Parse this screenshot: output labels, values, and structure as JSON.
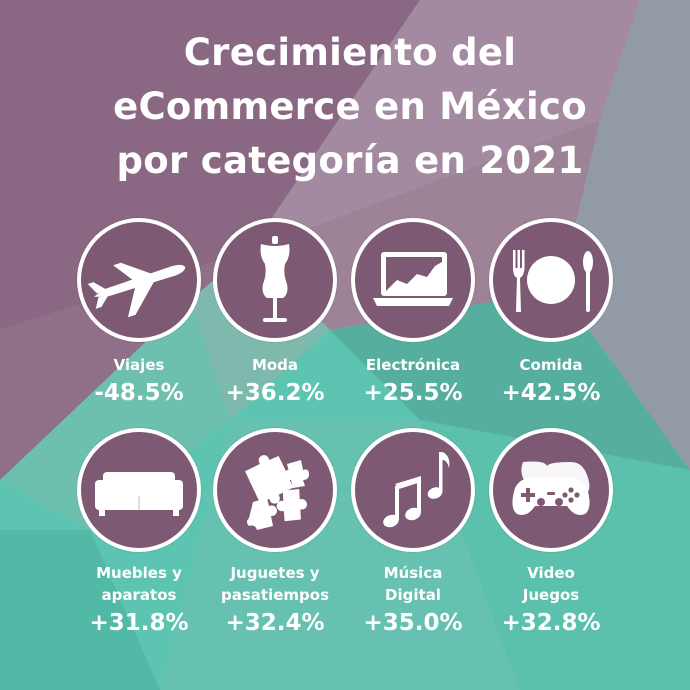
{
  "title_lines": [
    "Crecimiento del",
    "eCommerce en México",
    "por categoría en 2021"
  ],
  "colors": {
    "circle": "#7d5974",
    "teal": "#5cc4b0",
    "purple": "#8c6a84",
    "text": "#ffffff"
  },
  "categories": [
    {
      "label": "Viajes",
      "value": "-48.5%",
      "icon": "airplane-icon"
    },
    {
      "label": "Moda",
      "value": "+36.2%",
      "icon": "mannequin-icon"
    },
    {
      "label": "Electrónica",
      "value": "+25.5%",
      "icon": "laptop-icon"
    },
    {
      "label": "Comida",
      "value": "+42.5%",
      "icon": "plate-cutlery-icon"
    },
    {
      "label": "Muebles y aparatos",
      "label_lines": [
        "Muebles y",
        "aparatos"
      ],
      "value": "+31.8%",
      "icon": "sofa-icon"
    },
    {
      "label": "Juguetes y pasatiempos",
      "label_lines": [
        "Juguetes y",
        "pasatiempos"
      ],
      "value": "+32.4%",
      "icon": "puzzle-icon"
    },
    {
      "label": "Música Digital",
      "label_lines": [
        "Música",
        "Digital"
      ],
      "value": "+35.0%",
      "icon": "music-notes-icon"
    },
    {
      "label": "Video Juegos",
      "label_lines": [
        "Video",
        "Juegos"
      ],
      "value": "+32.8%",
      "icon": "gamepad-icon"
    }
  ]
}
